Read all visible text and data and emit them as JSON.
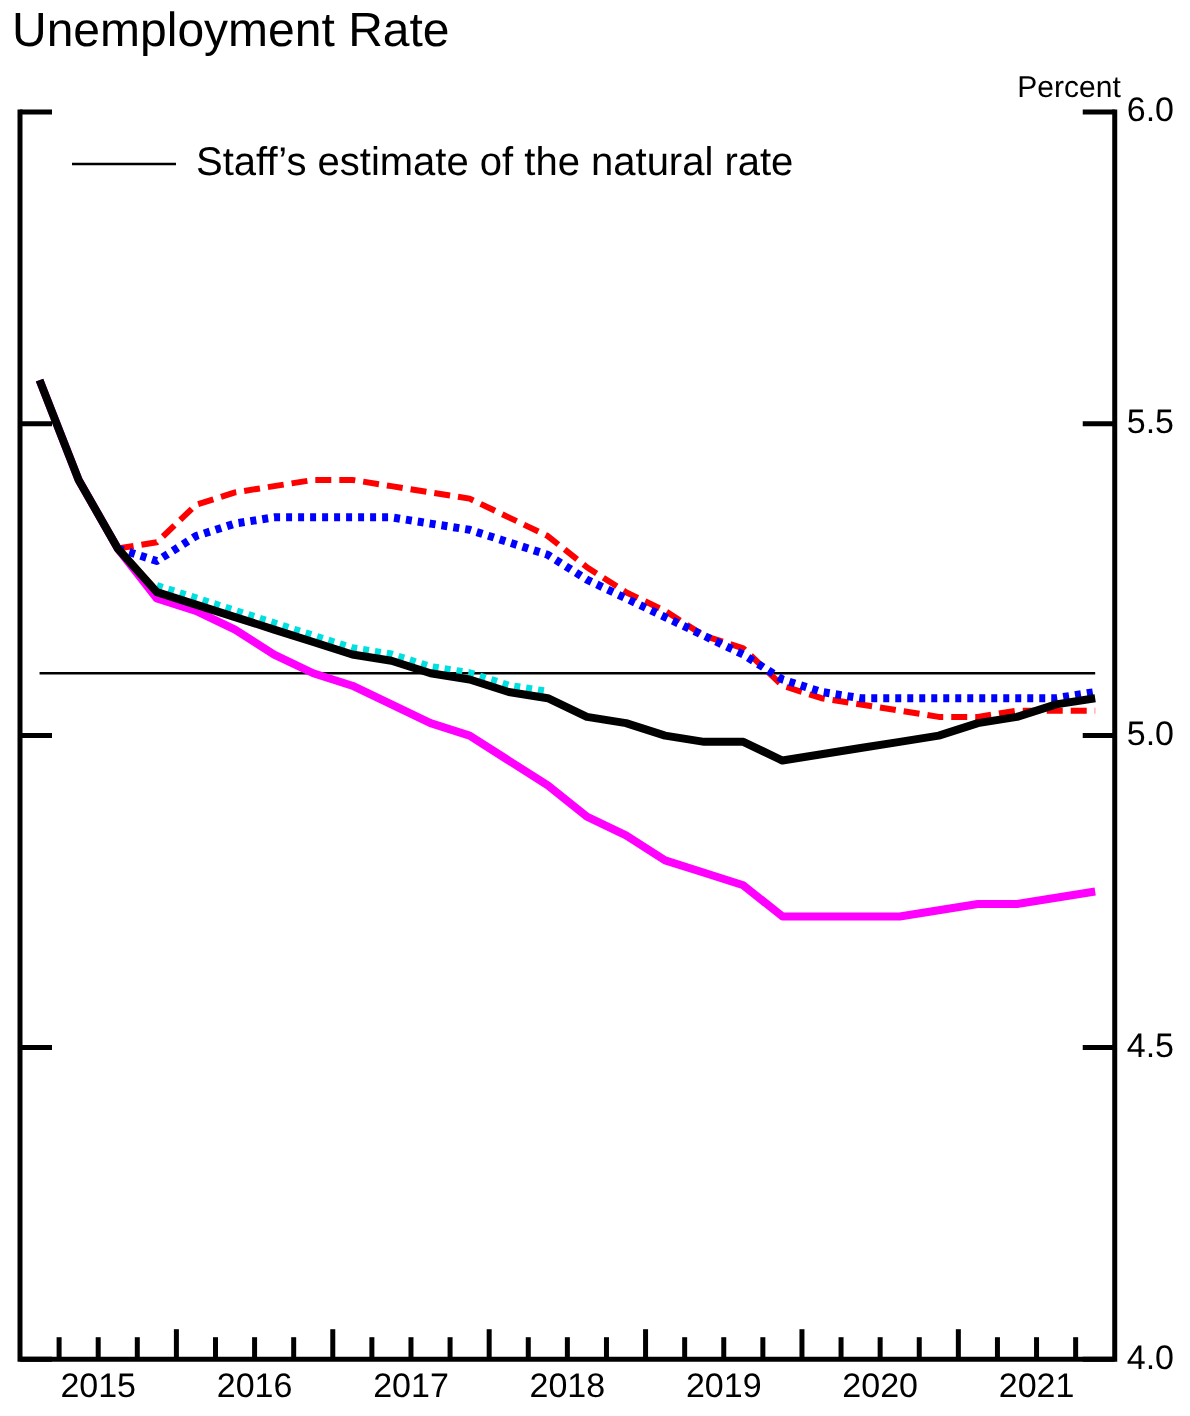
{
  "chart_data": {
    "type": "line",
    "title": "Unemployment Rate",
    "ylabel": "Percent",
    "x": [
      2015.125,
      2015.375,
      2015.625,
      2015.875,
      2016.125,
      2016.375,
      2016.625,
      2016.875,
      2017.125,
      2017.375,
      2017.625,
      2017.875,
      2018.125,
      2018.375,
      2018.625,
      2018.875,
      2019.125,
      2019.375,
      2019.625,
      2019.875,
      2020.125,
      2020.375,
      2020.625,
      2020.875,
      2021.125,
      2021.375,
      2021.625,
      2021.875
    ],
    "xlim": [
      2015,
      2022
    ],
    "xticks": [
      {
        "value": 2015.25,
        "label": null
      },
      {
        "value": 2015.5,
        "label": "2015"
      },
      {
        "value": 2015.75,
        "label": null
      },
      {
        "value": 2016,
        "label": null
      },
      {
        "value": 2016.25,
        "label": null
      },
      {
        "value": 2016.5,
        "label": "2016"
      },
      {
        "value": 2016.75,
        "label": null
      },
      {
        "value": 2017,
        "label": null
      },
      {
        "value": 2017.25,
        "label": null
      },
      {
        "value": 2017.5,
        "label": "2017"
      },
      {
        "value": 2017.75,
        "label": null
      },
      {
        "value": 2018,
        "label": null
      },
      {
        "value": 2018.25,
        "label": null
      },
      {
        "value": 2018.5,
        "label": "2018"
      },
      {
        "value": 2018.75,
        "label": null
      },
      {
        "value": 2019,
        "label": null
      },
      {
        "value": 2019.25,
        "label": null
      },
      {
        "value": 2019.5,
        "label": "2019"
      },
      {
        "value": 2019.75,
        "label": null
      },
      {
        "value": 2020,
        "label": null
      },
      {
        "value": 2020.25,
        "label": null
      },
      {
        "value": 2020.5,
        "label": "2020"
      },
      {
        "value": 2020.75,
        "label": null
      },
      {
        "value": 2021,
        "label": null
      },
      {
        "value": 2021.25,
        "label": null
      },
      {
        "value": 2021.5,
        "label": "2021"
      },
      {
        "value": 2021.75,
        "label": null
      }
    ],
    "ylim": [
      4,
      6
    ],
    "yticks": [
      {
        "value": 4,
        "label": "4.0"
      },
      {
        "value": 4.5,
        "label": "4.5"
      },
      {
        "value": 5,
        "label": "5.0"
      },
      {
        "value": 5.5,
        "label": "5.5"
      },
      {
        "value": 6,
        "label": "6.0"
      }
    ],
    "grid": false,
    "legend": "top left",
    "marker": "none",
    "series": [
      {
        "name": "Staff’s estimate of the natural rate",
        "color": "#000000",
        "line_style": "solid",
        "values": [
          5.1,
          5.1,
          5.1,
          5.1,
          5.1,
          5.1,
          5.1,
          5.1,
          5.1,
          5.1,
          5.1,
          5.1,
          5.1,
          5.1,
          5.1,
          5.1,
          5.1,
          5.1,
          5.1,
          5.1,
          5.1,
          5.1,
          5.1,
          5.1,
          5.1,
          5.1,
          5.1,
          5.1
        ]
      },
      {
        "color": "#00e0e0",
        "line_style": "dotted",
        "values": [
          null,
          null,
          null,
          5.24,
          5.22,
          5.2,
          5.18,
          5.16,
          5.14,
          5.13,
          5.11,
          5.1,
          5.08,
          5.07,
          null,
          null,
          null,
          null,
          null,
          null,
          null,
          null,
          null,
          null,
          null,
          null,
          null,
          null
        ]
      },
      {
        "color": "#ff0000",
        "line_style": "dashed",
        "values": [
          null,
          null,
          5.3,
          5.31,
          5.37,
          5.39,
          5.4,
          5.41,
          5.41,
          5.4,
          5.39,
          5.38,
          5.35,
          5.32,
          5.27,
          5.23,
          5.2,
          5.16,
          5.14,
          5.08,
          5.06,
          5.05,
          5.04,
          5.03,
          5.03,
          5.04,
          5.04,
          5.04
        ]
      },
      {
        "color": "#0000ff",
        "line_style": "dotted",
        "values": [
          null,
          null,
          5.3,
          5.28,
          5.32,
          5.34,
          5.35,
          5.35,
          5.35,
          5.35,
          5.34,
          5.33,
          5.31,
          5.29,
          5.25,
          5.22,
          5.19,
          5.16,
          5.13,
          5.09,
          5.07,
          5.06,
          5.06,
          5.06,
          5.06,
          5.06,
          5.06,
          5.07
        ]
      },
      {
        "color": "#ff00ff",
        "line_style": "solid",
        "values": [
          5.57,
          5.41,
          5.3,
          5.22,
          5.2,
          5.17,
          5.13,
          5.1,
          5.08,
          5.05,
          5.02,
          5,
          4.96,
          4.92,
          4.87,
          4.84,
          4.8,
          4.78,
          4.76,
          4.71,
          4.71,
          4.71,
          4.71,
          4.72,
          4.73,
          4.73,
          4.74,
          4.75
        ]
      },
      {
        "color": "#000000",
        "line_style": "solid",
        "values": [
          5.57,
          5.41,
          5.3,
          5.23,
          5.21,
          5.19,
          5.17,
          5.15,
          5.13,
          5.12,
          5.1,
          5.09,
          5.07,
          5.06,
          5.03,
          5.02,
          5,
          4.99,
          4.99,
          4.96,
          4.97,
          4.98,
          4.99,
          5,
          5.02,
          5.03,
          5.05,
          5.06
        ]
      }
    ]
  }
}
